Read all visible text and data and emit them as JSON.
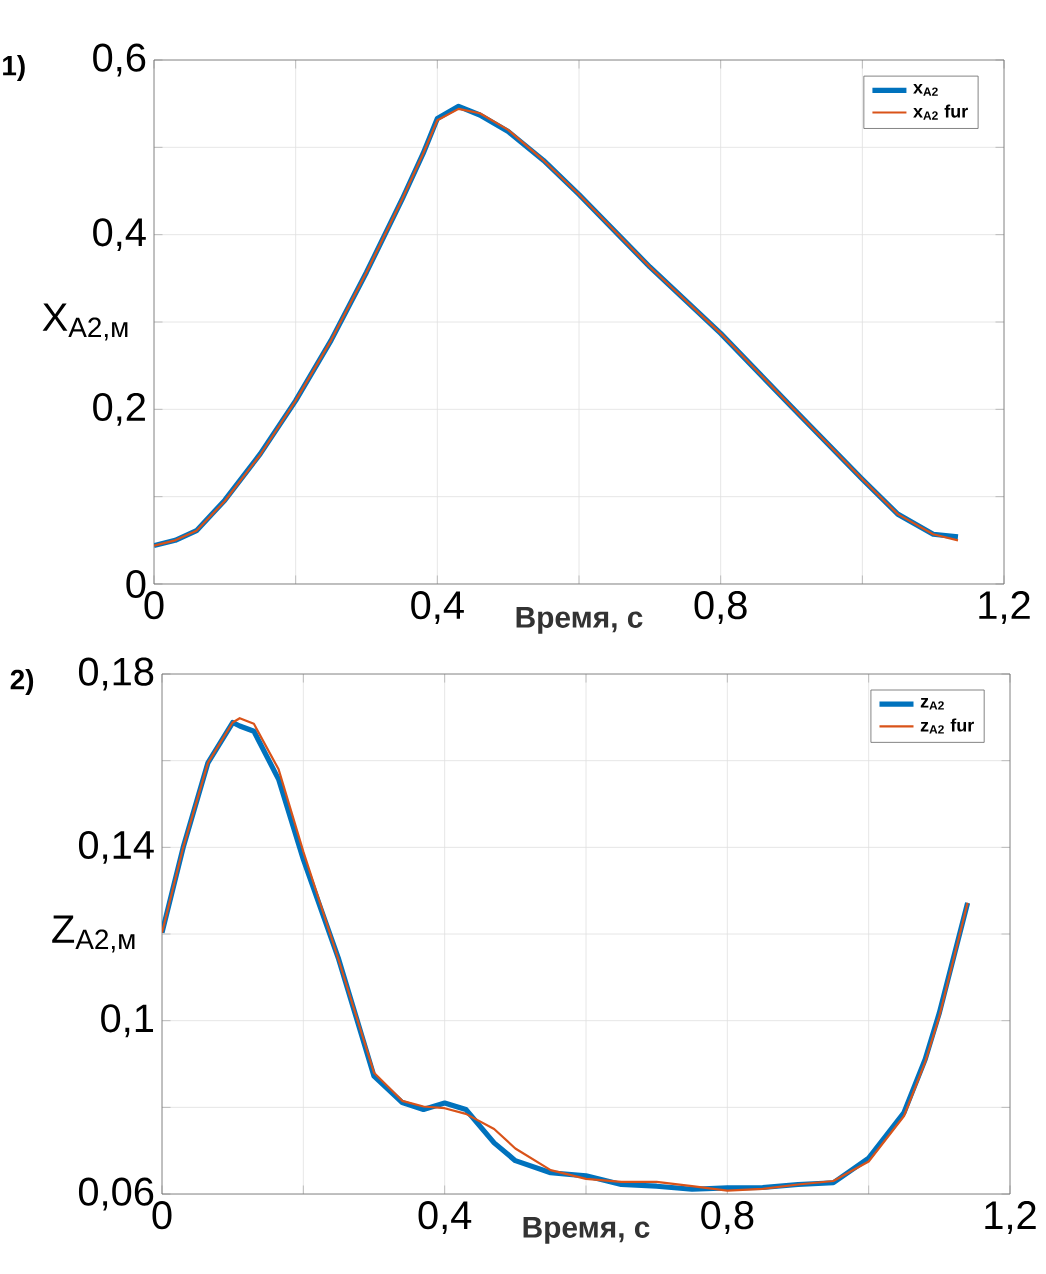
{
  "chart_data": [
    {
      "type": "line",
      "title": "1)",
      "xlabel": "Время, с",
      "ylabel": "X$_{A2,м}$",
      "xlim": [
        0,
        1.2
      ],
      "ylim": [
        0,
        0.6
      ],
      "xticks": [
        {
          "value": 0,
          "label": "0"
        },
        {
          "value": 0.2,
          "label": null
        },
        {
          "value": 0.4,
          "label": "0,4"
        },
        {
          "value": 0.6,
          "label": null
        },
        {
          "value": 0.8,
          "label": "0,8"
        },
        {
          "value": 1.0,
          "label": null
        },
        {
          "value": 1.2,
          "label": "1,2"
        }
      ],
      "yticks": [
        {
          "value": 0,
          "label": "0"
        },
        {
          "value": 0.1,
          "label": null
        },
        {
          "value": 0.2,
          "label": "0,2"
        },
        {
          "value": 0.3,
          "label": null
        },
        {
          "value": 0.4,
          "label": "0,4"
        },
        {
          "value": 0.5,
          "label": null
        },
        {
          "value": 0.6,
          "label": "0,6"
        }
      ],
      "grid": true,
      "legend": "top right",
      "x": [
        0,
        0.03,
        0.06,
        0.1,
        0.15,
        0.2,
        0.25,
        0.3,
        0.35,
        0.38,
        0.4,
        0.43,
        0.46,
        0.5,
        0.55,
        0.6,
        0.7,
        0.8,
        0.9,
        1.0,
        1.05,
        1.1,
        1.135
      ],
      "series": [
        {
          "name": "x$_{A2}$",
          "color": "#0072bd",
          "values": [
            0.044,
            0.05,
            0.061,
            0.096,
            0.149,
            0.21,
            0.279,
            0.357,
            0.44,
            0.493,
            0.533,
            0.547,
            0.537,
            0.518,
            0.485,
            0.446,
            0.363,
            0.287,
            0.203,
            0.12,
            0.08,
            0.057,
            0.054
          ]
        },
        {
          "name": "x$_{A2}$ fur",
          "color": "#d95319",
          "values": [
            0.044,
            0.05,
            0.061,
            0.095,
            0.148,
            0.21,
            0.279,
            0.357,
            0.44,
            0.493,
            0.531,
            0.544,
            0.539,
            0.52,
            0.485,
            0.446,
            0.363,
            0.287,
            0.203,
            0.12,
            0.08,
            0.057,
            0.05
          ]
        }
      ]
    },
    {
      "type": "line",
      "title": "2)",
      "xlabel": "Время, с",
      "ylabel": "Z$_{A2,м}$",
      "xlim": [
        0,
        1.2
      ],
      "ylim": [
        0.06,
        0.18
      ],
      "xticks": [
        {
          "value": 0,
          "label": "0"
        },
        {
          "value": 0.2,
          "label": null
        },
        {
          "value": 0.4,
          "label": "0,4"
        },
        {
          "value": 0.6,
          "label": null
        },
        {
          "value": 0.8,
          "label": "0,8"
        },
        {
          "value": 1.0,
          "label": null
        },
        {
          "value": 1.2,
          "label": "1,2"
        }
      ],
      "yticks": [
        {
          "value": 0.06,
          "label": "0,06"
        },
        {
          "value": 0.08,
          "label": null
        },
        {
          "value": 0.1,
          "label": "0,1"
        },
        {
          "value": 0.12,
          "label": null
        },
        {
          "value": 0.14,
          "label": "0,14"
        },
        {
          "value": 0.16,
          "label": null
        },
        {
          "value": 0.18,
          "label": "0,18"
        }
      ],
      "grid": true,
      "legend": "top right",
      "x": [
        0,
        0.03,
        0.065,
        0.1,
        0.11,
        0.13,
        0.165,
        0.2,
        0.25,
        0.3,
        0.34,
        0.37,
        0.4,
        0.43,
        0.47,
        0.5,
        0.55,
        0.6,
        0.65,
        0.7,
        0.75,
        0.8,
        0.85,
        0.9,
        0.95,
        1.0,
        1.05,
        1.08,
        1.1,
        1.14
      ],
      "series": [
        {
          "name": "z$_{A2}$",
          "color": "#0072bd",
          "values": [
            0.1203,
            0.14,
            0.1595,
            0.1688,
            0.168,
            0.1668,
            0.1557,
            0.1372,
            0.1142,
            0.0872,
            0.0811,
            0.0795,
            0.081,
            0.0795,
            0.0718,
            0.0677,
            0.0649,
            0.0642,
            0.0622,
            0.0618,
            0.0611,
            0.0614,
            0.0615,
            0.0622,
            0.0626,
            0.0683,
            0.0788,
            0.0911,
            0.1018,
            0.1272
          ]
        },
        {
          "name": "z$_{A2}$ fur",
          "color": "#d95319",
          "values": [
            0.1203,
            0.14,
            0.1595,
            0.1688,
            0.1698,
            0.1685,
            0.158,
            0.139,
            0.114,
            0.088,
            0.0815,
            0.0802,
            0.0798,
            0.0785,
            0.075,
            0.0705,
            0.0655,
            0.0635,
            0.0628,
            0.0628,
            0.0618,
            0.0608,
            0.0612,
            0.0622,
            0.063,
            0.0675,
            0.078,
            0.0905,
            0.101,
            0.1272
          ]
        }
      ]
    }
  ]
}
